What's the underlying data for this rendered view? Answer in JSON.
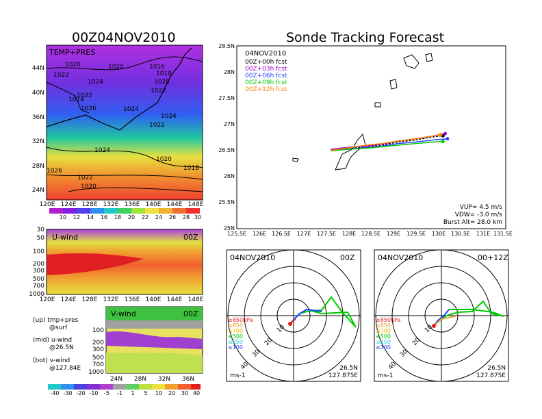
{
  "left_title": "00Z04NOV2010",
  "right_title": "Sonde Tracking Forecast",
  "map": {
    "label": "TEMP+PRES",
    "lat_ticks": [
      "44N",
      "40N",
      "36N",
      "32N",
      "28N",
      "24N"
    ],
    "lon_ticks": [
      "120E",
      "124E",
      "128E",
      "132E",
      "136E",
      "140E",
      "144E",
      "148E"
    ],
    "isobars": [
      "1020",
      "1020",
      "1016",
      "1018",
      "1022",
      "1024",
      "1022",
      "1020",
      "1022",
      "1024",
      "1026",
      "1024",
      "1024",
      "1022",
      "1024",
      "1020",
      "1018",
      "1026",
      "1022",
      "1020"
    ],
    "temp_scale": [
      "10",
      "12",
      "14",
      "16",
      "18",
      "20",
      "22",
      "24",
      "26",
      "28",
      "30"
    ]
  },
  "uwind": {
    "label": "U-wind",
    "time": "00Z",
    "levels": [
      "30",
      "50",
      "100",
      "200",
      "300",
      "500",
      "700",
      "1000"
    ],
    "lon_ticks": [
      "120E",
      "124E",
      "128E",
      "132E",
      "136E",
      "140E",
      "144E",
      "148E"
    ]
  },
  "vwind": {
    "label": "V-wind",
    "time": "00Z",
    "levels": [
      "100",
      "200",
      "300",
      "500",
      "700",
      "1000"
    ],
    "lat_ticks": [
      "24N",
      "28N",
      "32N",
      "36N"
    ],
    "scale": [
      "-40",
      "-30",
      "-20",
      "-10",
      "-5",
      "-1",
      "1",
      "5",
      "10",
      "20",
      "30",
      "40"
    ]
  },
  "legend_text": {
    "up": "(up) tmp+pres",
    "up2": "@surf",
    "mid": "(mid) u-wind",
    "mid2": "@26.5N",
    "bot": "(bot) v-wind",
    "bot2": "@127.84E"
  },
  "track": {
    "date": "04NOV2010",
    "forecasts": [
      {
        "label": "00Z+00h fcst",
        "color": "#000000"
      },
      {
        "label": "00Z+03h fcst",
        "color": "#a000c8"
      },
      {
        "label": "00Z+06h fcst",
        "color": "#2040ff"
      },
      {
        "label": "00Z+09h fcst",
        "color": "#00c800"
      },
      {
        "label": "00Z+12h fcst",
        "color": "#ff8000"
      }
    ],
    "lat_ticks": [
      "28.5N",
      "28N",
      "27.5N",
      "27N",
      "26.5N",
      "26N",
      "25.5N",
      "25N"
    ],
    "lon_ticks": [
      "125.5E",
      "126E",
      "126.5E",
      "127E",
      "127.5E",
      "128E",
      "128.5E",
      "129E",
      "129.5E",
      "130E",
      "130.5E",
      "131E",
      "131.5E"
    ],
    "vup": "VUP=  4.5 m/s",
    "vdw": "VDW= -3.0 m/s",
    "burst": "Burst Alt= 28.0 km"
  },
  "chart_data": [
    {
      "type": "line",
      "title": "Sonde Tracking Forecast",
      "xlabel": "",
      "ylabel": "",
      "xlim": [
        125.5,
        131.5
      ],
      "ylim": [
        25,
        28.5
      ],
      "series": [
        {
          "name": "00Z+00h fcst",
          "color": "#000000",
          "x": [
            127.6,
            128.0,
            128.4,
            128.75,
            129.1,
            129.5,
            129.9,
            130.1
          ],
          "y": [
            26.5,
            26.54,
            26.56,
            26.6,
            26.66,
            26.7,
            26.76,
            26.78
          ]
        },
        {
          "name": "00Z+03h fcst",
          "color": "#a000c8",
          "x": [
            127.6,
            128.0,
            128.4,
            128.75,
            129.1,
            129.5,
            129.9,
            130.15
          ],
          "y": [
            26.52,
            26.56,
            26.58,
            26.62,
            26.68,
            26.72,
            26.78,
            26.82
          ]
        },
        {
          "name": "00Z+06h fcst",
          "color": "#2040ff",
          "x": [
            127.6,
            128.0,
            128.4,
            128.75,
            129.1,
            129.5,
            129.9,
            130.2
          ],
          "y": [
            26.5,
            26.53,
            26.55,
            26.58,
            26.63,
            26.66,
            26.7,
            26.72
          ]
        },
        {
          "name": "00Z+09h fcst",
          "color": "#00c800",
          "x": [
            127.6,
            128.0,
            128.4,
            128.75,
            129.1,
            129.5,
            129.9,
            130.1
          ],
          "y": [
            26.49,
            26.52,
            26.54,
            26.57,
            26.6,
            26.63,
            26.66,
            26.67
          ]
        },
        {
          "name": "00Z+12h fcst",
          "color": "#ff8000",
          "x": [
            127.6,
            128.0,
            128.4,
            128.75,
            129.1,
            129.5,
            129.9,
            130.05
          ],
          "y": [
            26.5,
            26.55,
            26.6,
            26.63,
            26.68,
            26.72,
            26.78,
            26.8
          ]
        }
      ]
    }
  ],
  "hodo1": {
    "date": "04NOV2010",
    "time": "00Z",
    "lat": "26.5N",
    "lon": "127.875E",
    "unit": "ms-1",
    "rings": [
      "10",
      "20",
      "30",
      "40"
    ],
    "levels": [
      "≥850hPa",
      "≤850",
      "≤700",
      "≤500",
      "≤250",
      "≤100"
    ]
  },
  "hodo2": {
    "date": "04NOV2010",
    "time": "00+12Z",
    "lat": "26.5N",
    "lon": "127.875E",
    "unit": "ms-1",
    "rings": [
      "10",
      "20",
      "30",
      "40"
    ],
    "levels": [
      "≥850hPa",
      "≤850",
      "≤700",
      "≤500",
      "≤250",
      "≤100"
    ]
  }
}
